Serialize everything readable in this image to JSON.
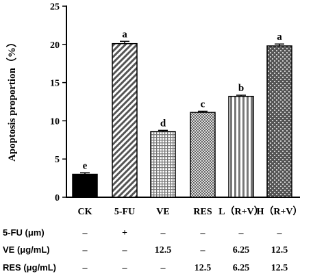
{
  "chart_data": {
    "type": "bar",
    "title": "",
    "xlabel": "",
    "ylabel": "Apoptosis proportion（%）",
    "ylim": [
      0,
      25
    ],
    "yticks": [
      "0",
      "5",
      "10",
      "15",
      "20",
      "25"
    ],
    "categories": [
      "CK",
      "5-FU",
      "VE",
      "RES",
      "L（R+V）",
      "H（R+V）"
    ],
    "values": [
      3.0,
      20.1,
      8.6,
      11.1,
      13.2,
      19.8
    ],
    "errors": [
      0.2,
      0.3,
      0.15,
      0.15,
      0.15,
      0.25
    ],
    "significance": [
      "e",
      "a",
      "d",
      "c",
      "b",
      "a"
    ],
    "grid": false,
    "legend": "none"
  },
  "treatment_table": {
    "rows": [
      {
        "label": "5-FU (μm)",
        "cells": [
          "–",
          "+",
          "–",
          "–",
          "–",
          "–"
        ]
      },
      {
        "label": "VE (μg/mL)",
        "cells": [
          "–",
          "–",
          "12.5",
          "–",
          "6.25",
          "12.5"
        ]
      },
      {
        "label": "RES (μg/mL)",
        "cells": [
          "–",
          "–",
          "–",
          "12.5",
          "6.25",
          "12.5"
        ]
      }
    ]
  },
  "colors": {
    "bar_stroke": "#000000",
    "ck_fill": "#000000",
    "pattern_fill": "#666666"
  }
}
